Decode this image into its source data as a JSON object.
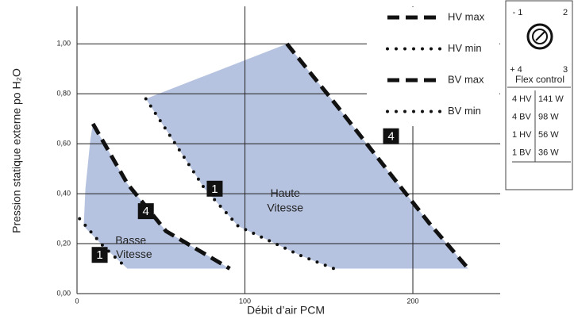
{
  "chart_data": {
    "type": "line",
    "xlabel": "Débit d’air PCM",
    "ylabel": "Pression statique externe po H₂O",
    "xlim": [
      0,
      252
    ],
    "ylim": [
      0,
      1.15
    ],
    "xticks": [
      0,
      100,
      200
    ],
    "yticks": [
      {
        "value": 0,
        "label": "0,00"
      },
      {
        "value": 0.2,
        "label": "0,20"
      },
      {
        "value": 0.4,
        "label": "0,40"
      },
      {
        "value": 0.6,
        "label": "0,60"
      },
      {
        "value": 0.8,
        "label": "0,80"
      },
      {
        "value": 1.0,
        "label": "1,00"
      }
    ],
    "grid": true,
    "legend": "upper right",
    "series": [
      {
        "name": "HV max",
        "color": "#111111",
        "style": "dashed",
        "x": [
          125,
          155,
          190,
          210,
          233
        ],
        "values": [
          1.0,
          0.75,
          0.45,
          0.28,
          0.1
        ]
      },
      {
        "name": "HV min",
        "color": "#111111",
        "style": "dotted",
        "x": [
          41,
          76,
          96,
          134,
          153
        ],
        "values": [
          0.78,
          0.42,
          0.27,
          0.15,
          0.1
        ]
      },
      {
        "name": "BV max",
        "color": "#111111",
        "style": "dashed",
        "x": [
          9.5,
          30,
          53,
          91
        ],
        "values": [
          0.68,
          0.44,
          0.25,
          0.1
        ]
      },
      {
        "name": "BV min",
        "color": "#111111",
        "style": "dotted",
        "x": [
          1.5,
          15.6,
          30
        ],
        "values": [
          0.3,
          0.19,
          0.1
        ]
      }
    ],
    "areas": [
      {
        "color": "#a9b8da",
        "x": [
          4,
          5,
          8,
          9.5,
          30,
          53,
          91,
          30,
          15.6,
          4
        ],
        "values": [
          0.27,
          0.42,
          0.62,
          0.68,
          0.44,
          0.25,
          0.1,
          0.1,
          0.19,
          0.27
        ]
      },
      {
        "color": "#a9b8da",
        "x": [
          41,
          125,
          155,
          190,
          210,
          233,
          153,
          134,
          96,
          76,
          41
        ],
        "values": [
          0.78,
          1.0,
          0.75,
          0.45,
          0.28,
          0.1,
          0.1,
          0.15,
          0.27,
          0.42,
          0.78
        ]
      }
    ],
    "annotations": [
      {
        "text": "4",
        "x": 41,
        "y": 0.33,
        "badge": true
      },
      {
        "text": "1",
        "x": 13.5,
        "y": 0.155,
        "badge": true
      },
      {
        "text": "1",
        "x": 82,
        "y": 0.42,
        "badge": true
      },
      {
        "text": "4",
        "x": 187,
        "y": 0.63,
        "badge": true
      },
      {
        "text": "Haute",
        "x": 124,
        "y": 0.4,
        "badge": false
      },
      {
        "text": "Vitesse",
        "x": 124,
        "y": 0.34,
        "badge": false
      },
      {
        "text": "Basse",
        "x": 32,
        "y": 0.21,
        "badge": false
      },
      {
        "text": "Vitesse",
        "x": 34,
        "y": 0.155,
        "badge": false
      }
    ]
  },
  "side_panel": {
    "dial": [
      "- 1",
      "2",
      "+ 4",
      "3"
    ],
    "title": "Flex control",
    "rows": [
      [
        "4 HV",
        "141 W"
      ],
      [
        "4 BV",
        "98 W"
      ],
      [
        "1 HV",
        "56 W"
      ],
      [
        "1 BV",
        "36 W"
      ]
    ]
  }
}
